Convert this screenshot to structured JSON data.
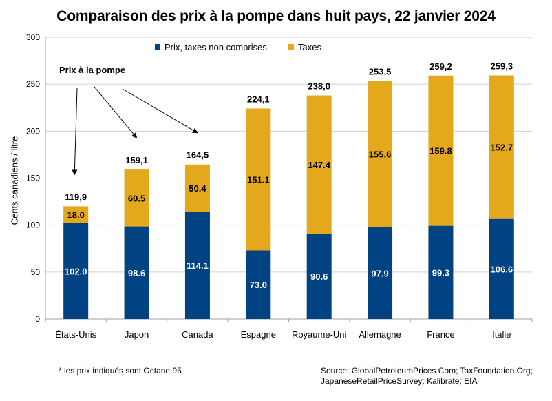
{
  "chart_data": {
    "type": "bar",
    "stacked": true,
    "title": "Comparaison des prix à la pompe dans huit pays, 22 janvier 2024",
    "ylabel": "Cents canadiens / litre",
    "xlabel": "",
    "ylim": [
      0,
      300
    ],
    "yticks": [
      "0",
      "50",
      "100",
      "150",
      "200",
      "250",
      "300"
    ],
    "grid": true,
    "legend_position": "top",
    "categories": [
      "États-Unis",
      "Japon",
      "Canada",
      "Espagne",
      "Royaume-Uni",
      "Allemagne",
      "France",
      "Italie"
    ],
    "series": [
      {
        "name": "Prix, taxes non comprises",
        "color": "#004282",
        "values": [
          102.0,
          98.6,
          114.1,
          73.0,
          90.6,
          97.9,
          99.3,
          106.6
        ],
        "labels": [
          "102.0",
          "98.6",
          "114.1",
          "73.0",
          "90.6",
          "97.9",
          "99.3",
          "106.6"
        ]
      },
      {
        "name": "Taxes",
        "color": "#E3A81C",
        "values": [
          18.0,
          60.5,
          50.4,
          151.1,
          147.4,
          155.6,
          159.8,
          152.7
        ],
        "labels": [
          "18.0",
          "60.5",
          "50.4",
          "151.1",
          "147.4",
          "155.6",
          "159.8",
          "152.7"
        ]
      }
    ],
    "totals": [
      119.9,
      159.1,
      164.5,
      224.1,
      238.0,
      253.5,
      259.2,
      259.3
    ],
    "total_labels": [
      "119,9",
      "159,1",
      "164,5",
      "224,1",
      "238,0",
      "253,5",
      "259,2",
      "259,3"
    ],
    "annotation": "Prix à la pompe"
  },
  "footnote": "* les prix indiqués sont Octane 95",
  "source_lines": [
    "Source: GlobalPetroleumPrices.Com; TaxFoundation.Org;",
    "JapaneseRetailPriceSurvey; Kalibrate; EIA"
  ]
}
